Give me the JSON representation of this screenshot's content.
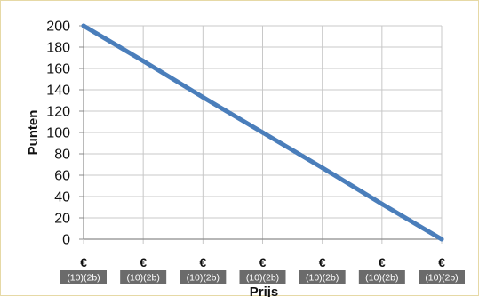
{
  "chart_data": {
    "type": "line",
    "xlabel": "Prijs",
    "ylabel": "Punten",
    "ylim": [
      0,
      200
    ],
    "y_ticks": [
      "0",
      "20",
      "40",
      "60",
      "80",
      "100",
      "120",
      "140",
      "160",
      "180",
      "200"
    ],
    "categories": [
      {
        "currency": "€",
        "value": "(10)(2b)"
      },
      {
        "currency": "€",
        "value": "(10)(2b)"
      },
      {
        "currency": "€",
        "value": "(10)(2b)"
      },
      {
        "currency": "€",
        "value": "(10)(2b)"
      },
      {
        "currency": "€",
        "value": "(10)(2b)"
      },
      {
        "currency": "€",
        "value": "(10)(2b)"
      },
      {
        "currency": "€",
        "value": "(10)(2b)"
      }
    ],
    "series": [
      {
        "values": [
          200,
          167,
          133,
          100,
          67,
          33,
          0
        ]
      }
    ],
    "grid": true,
    "legend": "none",
    "colors": {
      "line": "#4a7ebb",
      "grid": "#c8c8c8",
      "axis": "#8c8c8c",
      "badge": "#6b6b6b"
    }
  }
}
